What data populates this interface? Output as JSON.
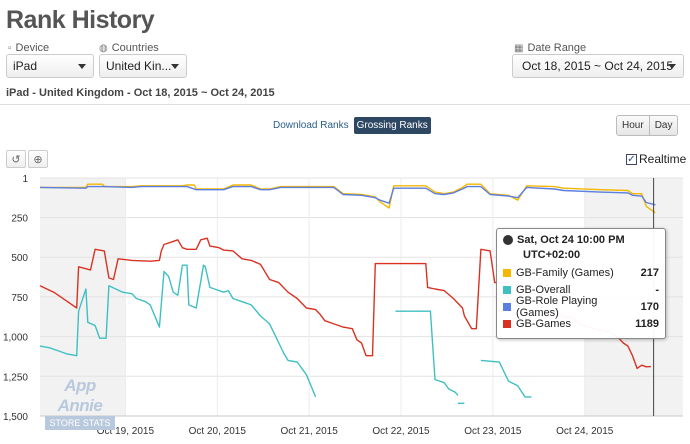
{
  "header": {
    "title": "Rank History"
  },
  "controls": {
    "device": {
      "label": "Device",
      "value": "iPad"
    },
    "countries": {
      "label": "Countries",
      "value": "United Kin..."
    },
    "date_range": {
      "label": "Date Range",
      "value": "Oct 18, 2015 ~ Oct 24, 2015"
    }
  },
  "subtitle": "iPad - United Kingdom - Oct 18, 2015 ~ Oct 24, 2015",
  "tabs": [
    {
      "label": "Download Ranks",
      "active": false
    },
    {
      "label": "Grossing Ranks",
      "active": true
    }
  ],
  "granularity": [
    {
      "label": "Hour"
    },
    {
      "label": "Day"
    }
  ],
  "toolbar": {
    "reset_icon": "reset-icon",
    "zoom_icon": "zoom-icon"
  },
  "realtime": {
    "label": "Realtime",
    "checked": true
  },
  "logo": {
    "line1": "App Annie",
    "line2": "STORE STATS"
  },
  "tooltip": {
    "date": "Sat, Oct 24 10:00 PM",
    "tz": "UTC+02:00",
    "rows": [
      {
        "name": "GB-Family (Games)",
        "value": "217",
        "color": "#f5b700"
      },
      {
        "name": "GB-Overall",
        "value": "-",
        "color": "#3fbfc4"
      },
      {
        "name": "GB-Role Playing (Games)",
        "value": "170",
        "color": "#5b7fe0"
      },
      {
        "name": "GB-Games",
        "value": "1189",
        "color": "#d93222"
      }
    ]
  },
  "chart_data": {
    "type": "line",
    "xlabel": "",
    "ylabel": "",
    "y_inverted": true,
    "ylim": [
      1,
      1500
    ],
    "y_ticks": [
      "1",
      "250",
      "500",
      "750",
      "1,000",
      "1,250",
      "1,500"
    ],
    "x_ticks": [
      "Oct 19, 2015",
      "Oct 20, 2015",
      "Oct 21, 2015",
      "Oct 22, 2015",
      "Oct 23, 2015",
      "Oct 24, 2015"
    ],
    "x_range_days": [
      0,
      7
    ],
    "grid": true,
    "series": [
      {
        "name": "GB-Family (Games)",
        "color": "#f5b700",
        "points": [
          [
            0,
            60
          ],
          [
            0.5,
            60
          ],
          [
            0.52,
            40
          ],
          [
            0.68,
            40
          ],
          [
            0.7,
            55
          ],
          [
            1.0,
            55
          ],
          [
            1.1,
            50
          ],
          [
            1.55,
            50
          ],
          [
            1.6,
            45
          ],
          [
            1.68,
            45
          ],
          [
            1.7,
            70
          ],
          [
            2.0,
            70
          ],
          [
            2.1,
            45
          ],
          [
            2.3,
            45
          ],
          [
            2.4,
            70
          ],
          [
            2.5,
            70
          ],
          [
            2.62,
            55
          ],
          [
            3.2,
            55
          ],
          [
            3.3,
            100
          ],
          [
            3.5,
            105
          ],
          [
            3.65,
            120
          ],
          [
            3.7,
            150
          ],
          [
            3.8,
            190
          ],
          [
            3.85,
            50
          ],
          [
            4.2,
            50
          ],
          [
            4.3,
            90
          ],
          [
            4.4,
            100
          ],
          [
            4.5,
            90
          ],
          [
            4.6,
            60
          ],
          [
            4.65,
            40
          ],
          [
            4.8,
            40
          ],
          [
            4.9,
            100
          ],
          [
            5.1,
            110
          ],
          [
            5.2,
            140
          ],
          [
            5.3,
            50
          ],
          [
            5.6,
            55
          ],
          [
            5.7,
            65
          ],
          [
            6.1,
            75
          ],
          [
            6.4,
            80
          ],
          [
            6.45,
            100
          ],
          [
            6.55,
            100
          ],
          [
            6.6,
            180
          ],
          [
            6.7,
            220
          ]
        ]
      },
      {
        "name": "GB-Role Playing (Games)",
        "color": "#5b7fe0",
        "points": [
          [
            0,
            60
          ],
          [
            0.5,
            65
          ],
          [
            0.52,
            55
          ],
          [
            0.7,
            55
          ],
          [
            1.0,
            60
          ],
          [
            1.1,
            55
          ],
          [
            1.6,
            55
          ],
          [
            1.7,
            75
          ],
          [
            2.0,
            75
          ],
          [
            2.1,
            55
          ],
          [
            2.3,
            55
          ],
          [
            2.4,
            75
          ],
          [
            2.5,
            75
          ],
          [
            2.62,
            60
          ],
          [
            3.2,
            60
          ],
          [
            3.3,
            105
          ],
          [
            3.5,
            110
          ],
          [
            3.65,
            125
          ],
          [
            3.7,
            140
          ],
          [
            3.8,
            160
          ],
          [
            3.85,
            65
          ],
          [
            4.2,
            65
          ],
          [
            4.3,
            100
          ],
          [
            4.4,
            105
          ],
          [
            4.5,
            95
          ],
          [
            4.6,
            70
          ],
          [
            4.65,
            55
          ],
          [
            4.8,
            55
          ],
          [
            4.9,
            105
          ],
          [
            5.1,
            115
          ],
          [
            5.2,
            125
          ],
          [
            5.3,
            60
          ],
          [
            5.6,
            70
          ],
          [
            5.7,
            80
          ],
          [
            6.1,
            90
          ],
          [
            6.4,
            95
          ],
          [
            6.45,
            110
          ],
          [
            6.55,
            115
          ],
          [
            6.6,
            155
          ],
          [
            6.7,
            170
          ]
        ]
      },
      {
        "name": "GB-Overall",
        "color": "#3fbfc4",
        "points": [
          [
            0,
            1060
          ],
          [
            0.1,
            1070
          ],
          [
            0.2,
            1090
          ],
          [
            0.3,
            1110
          ],
          [
            0.4,
            1120
          ],
          [
            0.42,
            840
          ],
          [
            0.5,
            700
          ],
          [
            0.52,
            910
          ],
          [
            0.6,
            930
          ],
          [
            0.65,
            1010
          ],
          [
            0.72,
            1010
          ],
          [
            0.75,
            680
          ],
          [
            0.9,
            720
          ],
          [
            1.0,
            730
          ],
          [
            1.05,
            760
          ],
          [
            1.15,
            780
          ],
          [
            1.2,
            800
          ],
          [
            1.25,
            870
          ],
          [
            1.3,
            940
          ],
          [
            1.35,
            590
          ],
          [
            1.4,
            620
          ],
          [
            1.45,
            720
          ],
          [
            1.5,
            740
          ],
          [
            1.55,
            550
          ],
          [
            1.6,
            550
          ],
          [
            1.62,
            800
          ],
          [
            1.7,
            820
          ],
          [
            1.78,
            550
          ],
          [
            1.8,
            560
          ],
          [
            1.85,
            690
          ],
          [
            1.9,
            700
          ],
          [
            2.0,
            720
          ],
          [
            2.05,
            710
          ],
          [
            2.1,
            760
          ],
          [
            2.2,
            780
          ],
          [
            2.3,
            800
          ],
          [
            2.4,
            870
          ],
          [
            2.5,
            920
          ],
          [
            2.55,
            980
          ],
          [
            2.6,
            1040
          ],
          [
            2.65,
            1100
          ],
          [
            2.7,
            1150
          ],
          [
            2.8,
            1160
          ],
          [
            2.9,
            1240
          ],
          [
            3.0,
            1380
          ]
        ],
        "segments_extra": [
          [
            [
              3.87,
              840
            ],
            [
              4.25,
              840
            ],
            [
              4.3,
              1270
            ],
            [
              4.4,
              1290
            ],
            [
              4.45,
              1330
            ],
            [
              4.52,
              1350
            ],
            [
              4.55,
              1370
            ]
          ],
          [
            [
              4.55,
              1420
            ],
            [
              4.62,
              1420
            ]
          ],
          [
            [
              4.8,
              1150
            ],
            [
              5.0,
              1160
            ],
            [
              5.1,
              1280
            ],
            [
              5.2,
              1310
            ],
            [
              5.28,
              1380
            ],
            [
              5.35,
              1380
            ]
          ]
        ]
      },
      {
        "name": "GB-Games",
        "color": "#d93222",
        "points": [
          [
            0,
            680
          ],
          [
            0.15,
            720
          ],
          [
            0.3,
            780
          ],
          [
            0.4,
            820
          ],
          [
            0.42,
            560
          ],
          [
            0.55,
            580
          ],
          [
            0.6,
            450
          ],
          [
            0.7,
            460
          ],
          [
            0.75,
            630
          ],
          [
            0.8,
            640
          ],
          [
            0.85,
            510
          ],
          [
            1.0,
            520
          ],
          [
            1.2,
            525
          ],
          [
            1.3,
            520
          ],
          [
            1.32,
            460
          ],
          [
            1.35,
            420
          ],
          [
            1.45,
            400
          ],
          [
            1.5,
            390
          ],
          [
            1.55,
            440
          ],
          [
            1.6,
            450
          ],
          [
            1.7,
            450
          ],
          [
            1.75,
            390
          ],
          [
            1.82,
            380
          ],
          [
            1.85,
            430
          ],
          [
            1.95,
            440
          ],
          [
            2.0,
            455
          ],
          [
            2.1,
            460
          ],
          [
            2.2,
            510
          ],
          [
            2.3,
            520
          ],
          [
            2.4,
            545
          ],
          [
            2.5,
            640
          ],
          [
            2.6,
            660
          ],
          [
            2.7,
            720
          ],
          [
            2.8,
            760
          ],
          [
            2.9,
            820
          ],
          [
            3.0,
            830
          ],
          [
            3.05,
            860
          ],
          [
            3.1,
            900
          ],
          [
            3.2,
            920
          ],
          [
            3.3,
            940
          ],
          [
            3.4,
            950
          ],
          [
            3.45,
            1020
          ],
          [
            3.5,
            1040
          ],
          [
            3.55,
            1120
          ],
          [
            3.62,
            1120
          ],
          [
            3.65,
            540
          ],
          [
            4.2,
            540
          ],
          [
            4.22,
            690
          ],
          [
            4.3,
            700
          ],
          [
            4.4,
            710
          ],
          [
            4.5,
            760
          ],
          [
            4.6,
            820
          ],
          [
            4.62,
            870
          ],
          [
            4.7,
            950
          ],
          [
            4.75,
            950
          ],
          [
            4.8,
            450
          ],
          [
            4.9,
            460
          ],
          [
            4.95,
            660
          ],
          [
            5.05,
            660
          ],
          [
            5.1,
            770
          ],
          [
            5.2,
            780
          ],
          [
            5.25,
            800
          ],
          [
            5.3,
            820
          ],
          [
            5.35,
            850
          ],
          [
            5.4,
            860
          ],
          [
            5.5,
            880
          ],
          [
            5.55,
            870
          ],
          [
            5.6,
            880
          ],
          [
            5.65,
            860
          ],
          [
            5.7,
            875
          ],
          [
            5.8,
            880
          ],
          [
            5.9,
            930
          ],
          [
            6.1,
            960
          ],
          [
            6.2,
            970
          ],
          [
            6.3,
            1010
          ],
          [
            6.35,
            1040
          ],
          [
            6.4,
            1060
          ],
          [
            6.45,
            1120
          ],
          [
            6.5,
            1200
          ],
          [
            6.55,
            1180
          ],
          [
            6.6,
            1190
          ],
          [
            6.65,
            1189
          ]
        ]
      }
    ]
  }
}
